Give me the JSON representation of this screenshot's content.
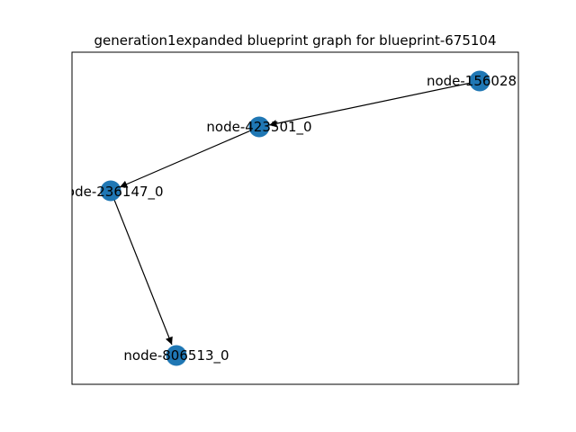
{
  "title": "generation1expanded blueprint graph for blueprint-675104",
  "colors": {
    "node": "#1f77b4",
    "edge": "#000000",
    "frame": "#000000"
  },
  "nodes": [
    {
      "id": "n156028",
      "label": "node-156028"
    },
    {
      "id": "n423501",
      "label": "node-423501_0"
    },
    {
      "id": "n236147",
      "label": "node-236147_0"
    },
    {
      "id": "n806513",
      "label": "node-806513_0"
    }
  ],
  "edges": [
    {
      "from": "n156028",
      "to": "n423501"
    },
    {
      "from": "n423501",
      "to": "n236147"
    },
    {
      "from": "n236147",
      "to": "n806513"
    }
  ]
}
